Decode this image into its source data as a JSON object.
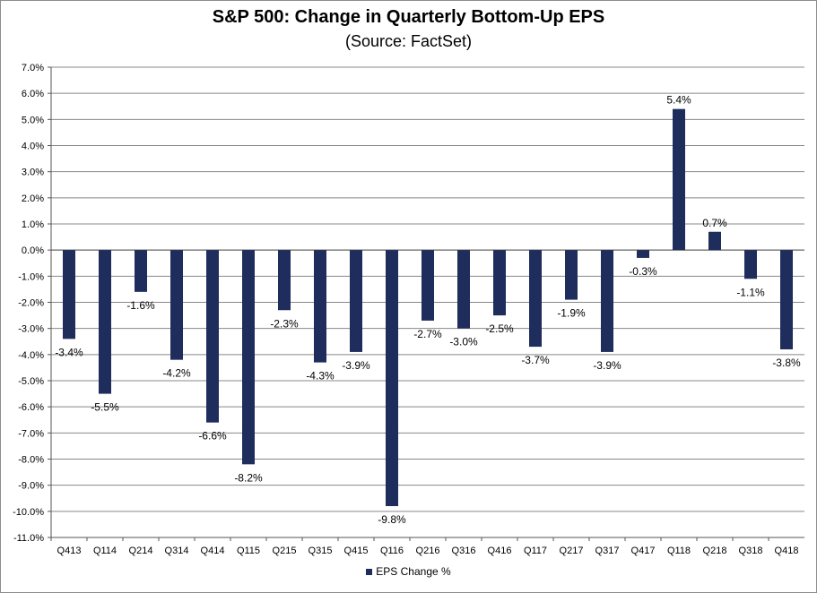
{
  "title": "S&P 500: Change in Quarterly Bottom-Up EPS",
  "subtitle": "(Source: FactSet)",
  "colors": {
    "bar": "#1f2d5c",
    "grid": "#888888",
    "axis": "#555555"
  },
  "legend_label": "EPS Change %",
  "chart_data": {
    "type": "bar",
    "title": "S&P 500: Change in Quarterly Bottom-Up EPS",
    "subtitle": "(Source: FactSet)",
    "xlabel": "",
    "ylabel": "",
    "ylim": [
      -11.0,
      7.0
    ],
    "ytick_step": 1.0,
    "ytick_format": "0.0%",
    "grid": true,
    "legend_position": "bottom",
    "categories": [
      "Q413",
      "Q114",
      "Q214",
      "Q314",
      "Q414",
      "Q115",
      "Q215",
      "Q315",
      "Q415",
      "Q116",
      "Q216",
      "Q316",
      "Q416",
      "Q117",
      "Q217",
      "Q317",
      "Q417",
      "Q118",
      "Q218",
      "Q318",
      "Q418"
    ],
    "series": [
      {
        "name": "EPS Change %",
        "values": [
          -3.4,
          -5.5,
          -1.6,
          -4.2,
          -6.6,
          -8.2,
          -2.3,
          -4.3,
          -3.9,
          -9.8,
          -2.7,
          -3.0,
          -2.5,
          -3.7,
          -1.9,
          -3.9,
          -0.3,
          5.4,
          0.7,
          -1.1,
          -3.8
        ],
        "labels": [
          "-3.4%",
          "-5.5%",
          "-1.6%",
          "-4.2%",
          "-6.6%",
          "-8.2%",
          "-2.3%",
          "-4.3%",
          "-3.9%",
          "-9.8%",
          "-2.7%",
          "-3.0%",
          "-2.5%",
          "-3.7%",
          "-1.9%",
          "-3.9%",
          "-0.3%",
          "5.4%",
          "0.7%",
          "-1.1%",
          "-3.8%"
        ]
      }
    ]
  }
}
